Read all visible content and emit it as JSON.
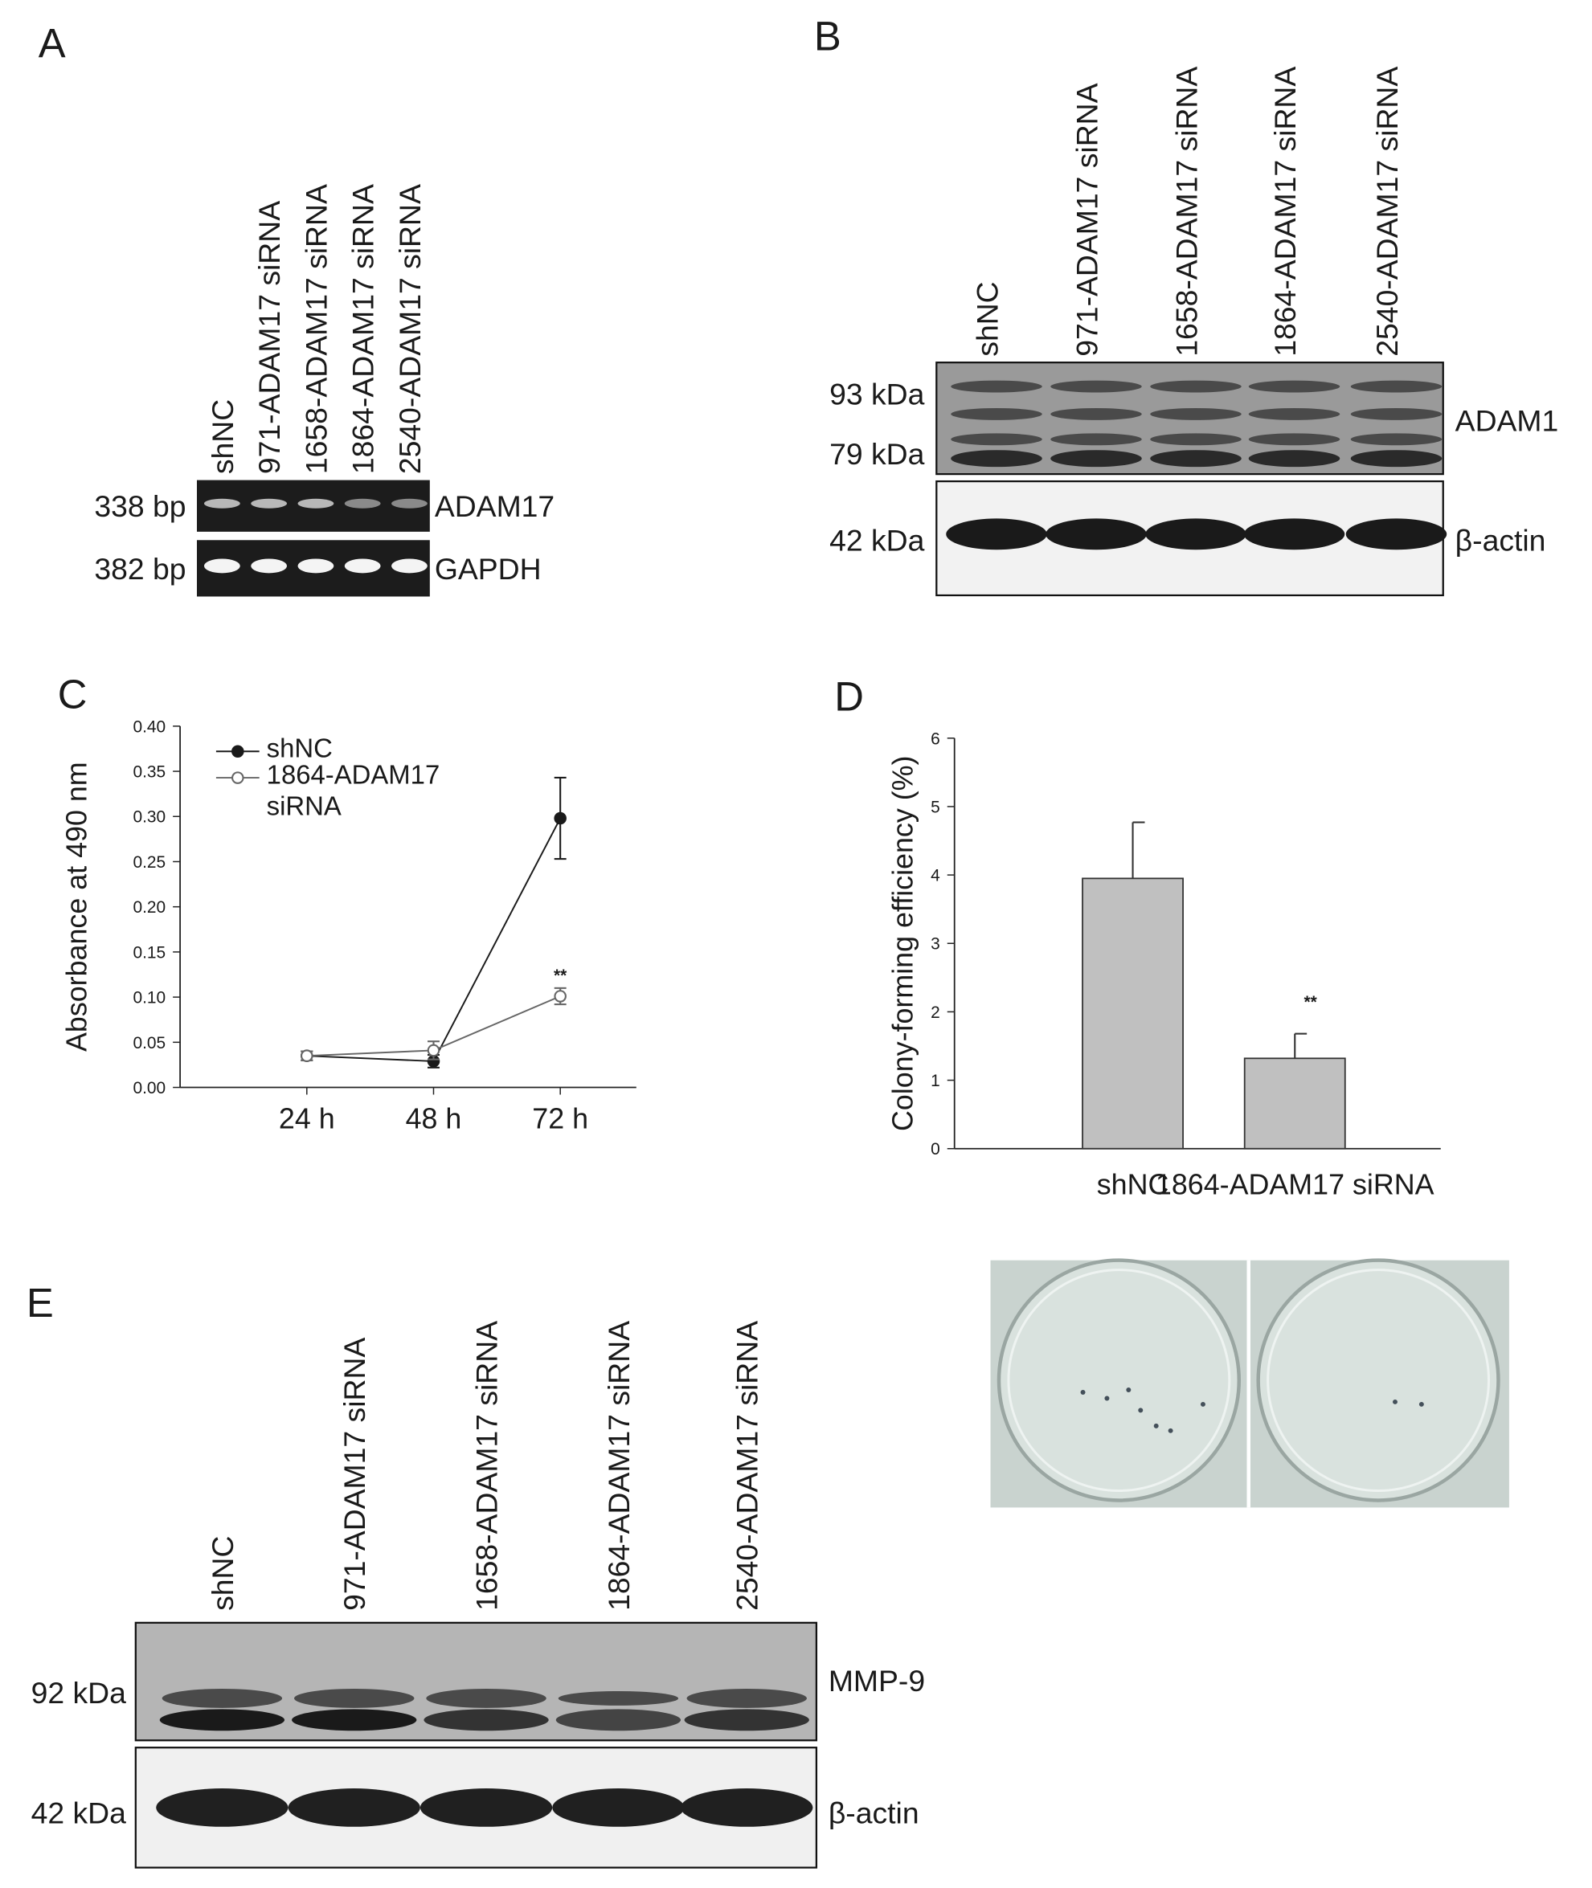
{
  "panels": {
    "A": {
      "label": "A",
      "lanes": [
        "shNC",
        "971-ADAM17 siRNA",
        "1658-ADAM17 siRNA",
        "1864-ADAM17 siRNA",
        "2540-ADAM17 siRNA"
      ],
      "rows": [
        {
          "size": "338 bp",
          "name": "ADAM17"
        },
        {
          "size": "382 bp",
          "name": "GAPDH"
        }
      ]
    },
    "B": {
      "label": "B",
      "lanes": [
        "shNC",
        "971-ADAM17 siRNA",
        "1658-ADAM17 siRNA",
        "1864-ADAM17 siRNA",
        "2540-ADAM17 siRNA"
      ],
      "markers": [
        "93 kDa",
        "79 kDa",
        "42 kDa"
      ],
      "proteins": [
        "ADAM1",
        "β-actin"
      ]
    },
    "E": {
      "label": "E",
      "lanes": [
        "shNC",
        "971-ADAM17 siRNA",
        "1658-ADAM17 siRNA",
        "1864-ADAM17 siRNA",
        "2540-ADAM17 siRNA"
      ],
      "markers": [
        "92 kDa",
        "42 kDa"
      ],
      "proteins": [
        "MMP-9",
        "β-actin"
      ]
    }
  },
  "chart_data": [
    {
      "type": "line",
      "panel_label": "C",
      "y_label": "Absorbance at 490 nm",
      "categories": [
        "24 h",
        "48 h",
        "72 h"
      ],
      "series": [
        {
          "name": "shNC",
          "color": "#1a1a1a",
          "marker": "filled",
          "values": [
            0.035,
            0.029,
            0.298
          ],
          "errors": [
            0.005,
            0.007,
            0.045
          ]
        },
        {
          "name": "1864-ADAM17 siRNA",
          "color": "#666666",
          "marker": "open",
          "values": [
            0.035,
            0.041,
            0.101
          ],
          "errors": [
            0.005,
            0.01,
            0.009
          ]
        }
      ],
      "annotation": "**",
      "ylim": [
        0,
        0.4
      ],
      "yticks": [
        {
          "value": 0,
          "label": "0.00"
        },
        {
          "value": 0.05,
          "label": "0.05"
        },
        {
          "value": 0.1,
          "label": "0.10"
        },
        {
          "value": 0.15,
          "label": "0.15"
        },
        {
          "value": 0.2,
          "label": "0.20"
        },
        {
          "value": 0.25,
          "label": "0.25"
        },
        {
          "value": 0.3,
          "label": "0.30"
        },
        {
          "value": 0.35,
          "label": "0.35"
        },
        {
          "value": 0.4,
          "label": "0.40"
        }
      ]
    },
    {
      "type": "bar",
      "panel_label": "D",
      "y_label": "Colony-forming efficiency (%)",
      "categories": [
        "shNC",
        "1864-ADAM17 siRNA"
      ],
      "values": [
        3.95,
        1.32
      ],
      "errors": [
        0.82,
        0.36
      ],
      "color": "#c0c0c0",
      "annotation": "**",
      "ylim": [
        0,
        6
      ],
      "yticks": [
        0,
        1,
        2,
        3,
        4,
        5,
        6
      ]
    }
  ]
}
